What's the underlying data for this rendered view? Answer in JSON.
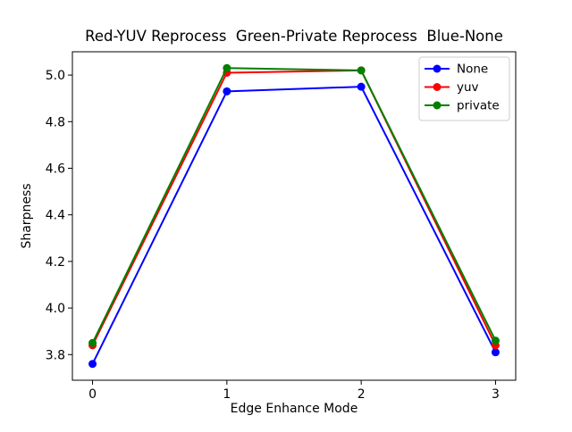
{
  "figure": {
    "background": "#ffffff",
    "frame_color": "#000000"
  },
  "chart_data": {
    "type": "line",
    "title": "Red-YUV Reprocess  Green-Private Reprocess  Blue-None",
    "xlabel": "Edge Enhance Mode",
    "ylabel": "Sharpness",
    "x": [
      0,
      1,
      2,
      3
    ],
    "series": [
      {
        "name": "None",
        "color": "#0000ff",
        "marker": "o",
        "values": [
          3.76,
          4.93,
          4.95,
          3.81
        ]
      },
      {
        "name": "yuv",
        "color": "#ff0000",
        "marker": "o",
        "values": [
          3.84,
          5.01,
          5.02,
          3.84
        ]
      },
      {
        "name": "private",
        "color": "#008000",
        "marker": "o",
        "values": [
          3.85,
          5.03,
          5.02,
          3.86
        ]
      }
    ],
    "xlim": [
      -0.15,
      3.15
    ],
    "ylim": [
      3.69,
      5.1
    ],
    "xticks": [
      0,
      1,
      2,
      3
    ],
    "yticks": [
      3.8,
      4.0,
      4.2,
      4.4,
      4.6,
      4.8,
      5.0
    ],
    "grid": false,
    "legend": {
      "position": "upper right",
      "entries": [
        "None",
        "yuv",
        "private"
      ],
      "border_color": "#cccccc",
      "background": "#ffffff"
    }
  }
}
